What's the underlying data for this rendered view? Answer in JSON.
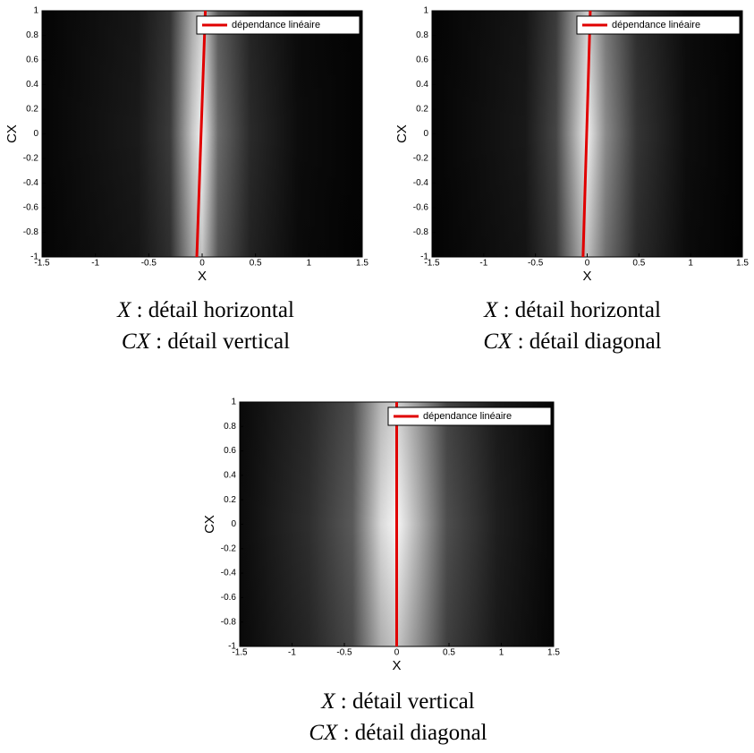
{
  "chart_data": [
    {
      "type": "heatmap",
      "xlabel": "X",
      "ylabel": "CX",
      "xlim": [
        -1.5,
        1.5
      ],
      "xticks": [
        -1.5,
        -1,
        -0.5,
        0,
        0.5,
        1,
        1.5
      ],
      "ylim": [
        -1,
        1
      ],
      "yticks": [
        -1,
        -0.8,
        -0.6,
        -0.4,
        -0.2,
        0,
        0.2,
        0.4,
        0.6,
        0.8,
        1
      ],
      "series": [
        {
          "name": "dépendance linéaire",
          "color": "#e00000",
          "x": [
            -0.05,
            0.03
          ],
          "y": [
            -1,
            1
          ]
        }
      ],
      "caption": [
        {
          "symbol": "X",
          "text": ": détail horizontal"
        },
        {
          "symbol": "CX",
          "text": ": détail vertical"
        }
      ]
    },
    {
      "type": "heatmap",
      "xlabel": "X",
      "ylabel": "CX",
      "xlim": [
        -1.5,
        1.5
      ],
      "xticks": [
        -1.5,
        -1,
        -0.5,
        0,
        0.5,
        1,
        1.5
      ],
      "ylim": [
        -1,
        1
      ],
      "yticks": [
        -1,
        -0.8,
        -0.6,
        -0.4,
        -0.2,
        0,
        0.2,
        0.4,
        0.6,
        0.8,
        1
      ],
      "series": [
        {
          "name": "dépendance linéaire",
          "color": "#e00000",
          "x": [
            -0.04,
            0.03
          ],
          "y": [
            -1,
            1
          ]
        }
      ],
      "caption": [
        {
          "symbol": "X",
          "text": ": détail horizontal"
        },
        {
          "symbol": "CX",
          "text": ": détail diagonal"
        }
      ]
    },
    {
      "type": "heatmap",
      "xlabel": "X",
      "ylabel": "CX",
      "xlim": [
        -1.5,
        1.5
      ],
      "xticks": [
        -1.5,
        -1,
        -0.5,
        0,
        0.5,
        1,
        1.5
      ],
      "ylim": [
        -1,
        1
      ],
      "yticks": [
        -1,
        -0.8,
        -0.6,
        -0.4,
        -0.2,
        0,
        0.2,
        0.4,
        0.6,
        0.8,
        1
      ],
      "series": [
        {
          "name": "dépendance linéaire",
          "color": "#e00000",
          "x": [
            0,
            0
          ],
          "y": [
            -1,
            1
          ]
        }
      ],
      "caption": [
        {
          "symbol": "X",
          "text": ": détail vertical"
        },
        {
          "symbol": "CX",
          "text": ": détail diagonal"
        }
      ]
    }
  ]
}
